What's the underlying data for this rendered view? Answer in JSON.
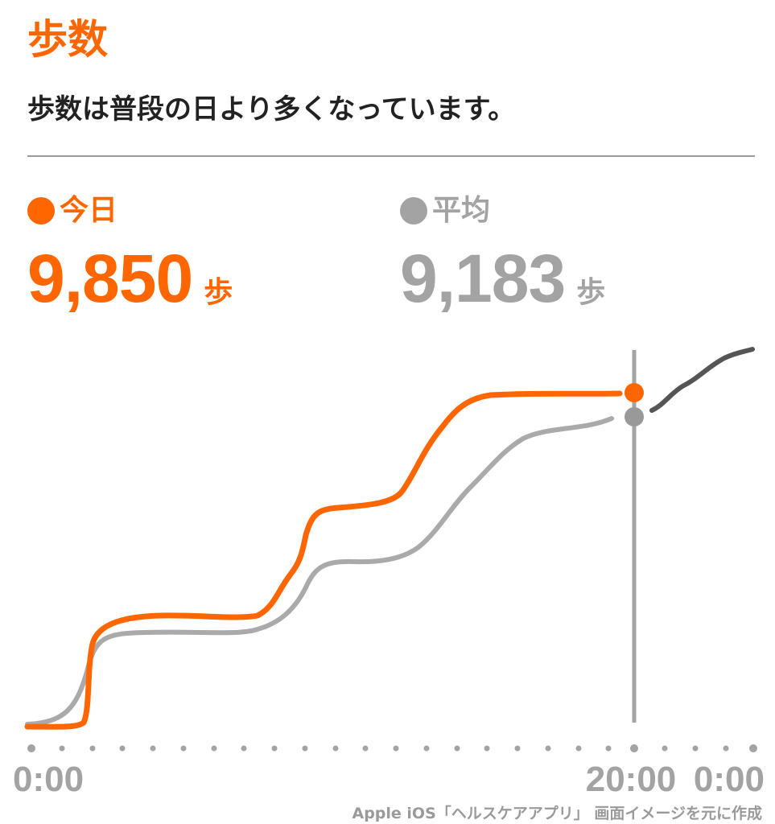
{
  "header": {
    "title": "歩数",
    "message": "歩数は普段の日より多くなっています。"
  },
  "today": {
    "label": "今日",
    "value": "9,850",
    "unit": "歩"
  },
  "average": {
    "label": "平均",
    "value": "9,183",
    "unit": "歩"
  },
  "chart_data": {
    "type": "line",
    "x_ticks": [
      "0:00",
      "20:00",
      "0:00"
    ],
    "marker_time": "20:00",
    "series": [
      {
        "name": "今日",
        "color": "#ff6600"
      },
      {
        "name": "平均",
        "color": "#aaaaaa"
      }
    ]
  },
  "credit": "Apple iOS「ヘルスケアアプリ」 画面イメージを元に作成",
  "colors": {
    "accent": "#ff6600",
    "average": "#aaaaaa",
    "text": "#222222"
  }
}
